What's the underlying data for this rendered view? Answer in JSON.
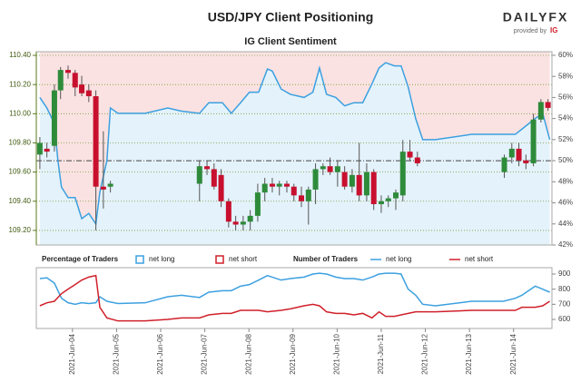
{
  "brand": {
    "name": "DAILYFX",
    "provided": "provided by",
    "ig": "IG"
  },
  "chart_data": [
    {
      "type": "candlestick",
      "title": "USD/JPY Client Positioning",
      "subtitle": "IG Client Sentiment",
      "legend_title": "Percentage of Traders",
      "legend": [
        {
          "name": "net long",
          "color": "#3ca0e0",
          "fill": "#e4f2fb"
        },
        {
          "name": "net short",
          "color": "#d0202a",
          "fill": "#fbe2e2"
        }
      ],
      "up_color": "#2e8b3a",
      "down_color": "#c8102e",
      "x": [
        3.26,
        3.42,
        3.59,
        3.73,
        3.9,
        4.06,
        4.21,
        4.37,
        4.53,
        4.7,
        4.86,
        6.88,
        7.05,
        7.21,
        7.37,
        7.54,
        7.7,
        7.87,
        8.03,
        8.2,
        8.36,
        8.53,
        8.69,
        8.86,
        9.02,
        9.19,
        9.35,
        9.51,
        9.68,
        9.84,
        10.01,
        10.17,
        10.34,
        10.5,
        10.67,
        10.83,
        11.0,
        11.16,
        11.33,
        11.49,
        11.65,
        11.82,
        13.79,
        13.96,
        14.12,
        14.28,
        14.45,
        14.62,
        14.78
      ],
      "open": [
        109.72,
        109.76,
        109.78,
        110.16,
        110.3,
        110.28,
        110.2,
        110.16,
        110.12,
        109.5,
        109.5,
        109.52,
        109.64,
        109.62,
        109.58,
        109.4,
        109.26,
        109.24,
        109.26,
        109.3,
        109.46,
        109.52,
        109.5,
        109.52,
        109.5,
        109.44,
        109.4,
        109.48,
        109.62,
        109.64,
        109.6,
        109.6,
        109.5,
        109.58,
        109.44,
        109.6,
        109.38,
        109.4,
        109.42,
        109.44,
        109.74,
        109.7,
        109.6,
        109.7,
        109.76,
        109.68,
        109.66,
        109.96,
        110.08
      ],
      "high": [
        109.84,
        109.8,
        110.2,
        110.32,
        110.33,
        110.3,
        110.26,
        110.2,
        110.16,
        109.88,
        109.54,
        109.68,
        109.68,
        109.66,
        109.62,
        109.42,
        109.3,
        109.3,
        109.34,
        109.52,
        109.56,
        109.56,
        109.54,
        109.54,
        109.52,
        109.5,
        109.5,
        109.66,
        109.66,
        109.7,
        109.68,
        109.64,
        109.62,
        109.8,
        109.66,
        109.62,
        109.44,
        109.44,
        109.48,
        109.82,
        109.82,
        109.74,
        109.72,
        109.8,
        109.8,
        109.72,
        110.0,
        110.1,
        110.1
      ],
      "low": [
        109.62,
        109.7,
        109.74,
        110.1,
        110.24,
        110.12,
        110.12,
        110.08,
        109.2,
        109.35,
        109.46,
        109.4,
        109.58,
        109.48,
        109.36,
        109.22,
        109.2,
        109.2,
        109.2,
        109.26,
        109.4,
        109.46,
        109.44,
        109.46,
        109.4,
        109.36,
        109.24,
        109.38,
        109.58,
        109.58,
        109.5,
        109.48,
        109.46,
        109.4,
        109.4,
        109.34,
        109.32,
        109.36,
        109.34,
        109.4,
        109.68,
        109.64,
        109.56,
        109.66,
        109.64,
        109.62,
        109.64,
        109.94,
        110.02
      ],
      "close": [
        109.8,
        109.74,
        110.16,
        110.3,
        110.28,
        110.18,
        110.14,
        110.12,
        109.5,
        109.48,
        109.52,
        109.64,
        109.62,
        109.5,
        109.4,
        109.26,
        109.24,
        109.26,
        109.3,
        109.46,
        109.52,
        109.5,
        109.52,
        109.5,
        109.44,
        109.4,
        109.48,
        109.62,
        109.64,
        109.6,
        109.64,
        109.5,
        109.58,
        109.44,
        109.6,
        109.38,
        109.4,
        109.42,
        109.46,
        109.74,
        109.7,
        109.66,
        109.7,
        109.76,
        109.68,
        109.66,
        109.96,
        110.08,
        110.04
      ],
      "sentiment": {
        "name": "net long",
        "axis": "y2",
        "color": "#3ca0e0",
        "x": [
          3.26,
          3.42,
          3.59,
          3.67,
          3.75,
          3.9,
          4.06,
          4.21,
          4.37,
          4.53,
          4.62,
          4.78,
          4.86,
          5.03,
          5.65,
          6.16,
          6.47,
          6.88,
          7.09,
          7.4,
          7.6,
          7.81,
          8.01,
          8.22,
          8.42,
          8.53,
          8.73,
          8.94,
          9.25,
          9.45,
          9.6,
          9.76,
          9.97,
          10.17,
          10.38,
          10.58,
          10.79,
          10.95,
          11.1,
          11.3,
          11.45,
          11.61,
          11.78,
          11.94,
          12.23,
          13.05,
          13.77,
          14.04,
          14.19,
          14.49,
          14.66,
          14.82
        ],
        "values": [
          56,
          55,
          53.5,
          50,
          47.5,
          46.5,
          46.5,
          44.5,
          45,
          44,
          47,
          50,
          55,
          54.5,
          54.5,
          55,
          54.7,
          54.5,
          55.5,
          55.5,
          54.5,
          55.5,
          56.5,
          56.5,
          58.7,
          58.5,
          56.8,
          56.3,
          56,
          56.5,
          58.8,
          56.3,
          56,
          55.2,
          55.5,
          55.5,
          57.3,
          58.8,
          59.3,
          59,
          59,
          57,
          54,
          52,
          52,
          52.5,
          52.5,
          52.5,
          53,
          54,
          54.5,
          52
        ]
      },
      "y2_reference": 50,
      "xlim": [
        3.18,
        14.87
      ],
      "ylim": [
        109.1,
        110.425
      ],
      "yticks": [
        {
          "value": 109.2,
          "label": "109.20"
        },
        {
          "value": 109.4,
          "label": "109.40"
        },
        {
          "value": 109.6,
          "label": "109.60"
        },
        {
          "value": 109.8,
          "label": "109.80"
        },
        {
          "value": 110,
          "label": "110.00"
        },
        {
          "value": 110.2,
          "label": "110.20"
        },
        {
          "value": 110.4,
          "label": "110.40"
        }
      ],
      "y2lim": [
        42,
        60.34
      ],
      "y2ticks": [
        {
          "value": 42,
          "label": "42%"
        },
        {
          "value": 44,
          "label": "44%"
        },
        {
          "value": 46,
          "label": "46%"
        },
        {
          "value": 48,
          "label": "48%"
        },
        {
          "value": 50,
          "label": "50%"
        },
        {
          "value": 52,
          "label": "52%"
        },
        {
          "value": 54,
          "label": "54%"
        },
        {
          "value": 56,
          "label": "56%"
        },
        {
          "value": 58,
          "label": "58%"
        },
        {
          "value": 60,
          "label": "60%"
        }
      ],
      "grid": true
    },
    {
      "type": "line",
      "legend_title": "Number of Traders",
      "x": [
        3.26,
        3.42,
        3.59,
        3.75,
        3.9,
        4.06,
        4.21,
        4.37,
        4.53,
        4.62,
        4.78,
        5.03,
        5.65,
        6.16,
        6.47,
        6.88,
        7.09,
        7.4,
        7.6,
        7.81,
        8.01,
        8.22,
        8.42,
        8.73,
        8.94,
        9.25,
        9.45,
        9.6,
        9.76,
        9.97,
        10.17,
        10.38,
        10.58,
        10.79,
        10.95,
        11.1,
        11.3,
        11.45,
        11.61,
        11.78,
        11.94,
        12.23,
        13.05,
        13.77,
        14.04,
        14.19,
        14.49,
        14.66,
        14.82
      ],
      "series": [
        {
          "name": "net long",
          "color": "#3ca0e0",
          "axis": "y2",
          "values": [
            870,
            875,
            840,
            740,
            710,
            700,
            710,
            705,
            710,
            750,
            720,
            705,
            710,
            750,
            760,
            745,
            780,
            790,
            790,
            820,
            830,
            860,
            890,
            860,
            870,
            880,
            900,
            905,
            900,
            880,
            870,
            870,
            860,
            880,
            900,
            905,
            905,
            900,
            800,
            760,
            700,
            690,
            720,
            720,
            740,
            760,
            820,
            800,
            780
          ]
        },
        {
          "name": "net short",
          "color": "#d0202a",
          "axis": "y2",
          "values": [
            690,
            710,
            720,
            770,
            800,
            830,
            860,
            880,
            890,
            680,
            610,
            590,
            590,
            600,
            610,
            610,
            630,
            640,
            640,
            660,
            660,
            660,
            650,
            660,
            670,
            690,
            700,
            690,
            650,
            640,
            640,
            630,
            640,
            610,
            650,
            620,
            620,
            630,
            640,
            650,
            650,
            650,
            660,
            660,
            660,
            680,
            680,
            690,
            720
          ]
        }
      ],
      "xlim": [
        3.18,
        14.87
      ],
      "xticks": [
        {
          "value": 4,
          "label": "2021-Jun-04"
        },
        {
          "value": 5,
          "label": "2021-Jun-05"
        },
        {
          "value": 6,
          "label": "2021-Jun-06"
        },
        {
          "value": 7,
          "label": "2021-Jun-07"
        },
        {
          "value": 8,
          "label": "2021-Jun-08"
        },
        {
          "value": 9,
          "label": "2021-Jun-09"
        },
        {
          "value": 10,
          "label": "2021-Jun-10"
        },
        {
          "value": 11,
          "label": "2021-Jun-11"
        },
        {
          "value": 12,
          "label": "2021-Jun-12"
        },
        {
          "value": 13,
          "label": "2021-Jun-13"
        },
        {
          "value": 14,
          "label": "2021-Jun-14"
        }
      ],
      "y2lim": [
        540,
        942
      ],
      "y2ticks": [
        600,
        700,
        800,
        900
      ]
    }
  ]
}
